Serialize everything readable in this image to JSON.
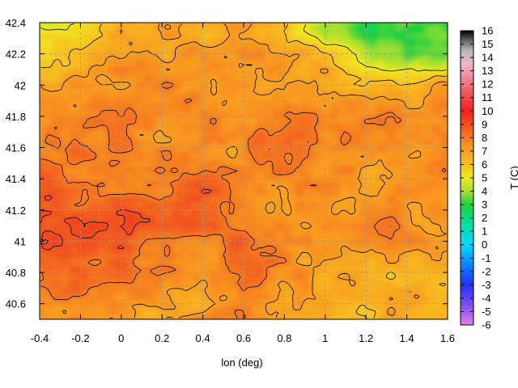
{
  "chart_data": {
    "type": "heatmap",
    "title": "",
    "xlabel": "lon (deg)",
    "ylabel": "",
    "colorbar_label": "T (C)",
    "xlim": [
      -0.4,
      1.6
    ],
    "ylim": [
      40.5,
      42.4
    ],
    "clim": [
      -6,
      16
    ],
    "x_ticks": [
      "-0.4",
      "-0.2",
      "0",
      "0.2",
      "0.4",
      "0.6",
      "0.8",
      "1",
      "1.2",
      "1.4",
      "1.6"
    ],
    "x_tick_values": [
      -0.4,
      -0.2,
      0,
      0.2,
      0.4,
      0.6,
      0.8,
      1,
      1.2,
      1.4,
      1.6
    ],
    "y_ticks": [
      "40.6",
      "40.8",
      "41",
      "41.2",
      "41.4",
      "41.6",
      "41.8",
      "42",
      "42.2",
      "42.4"
    ],
    "y_tick_values": [
      40.6,
      40.8,
      41,
      41.2,
      41.4,
      41.6,
      41.8,
      42,
      42.2,
      42.4
    ],
    "cb_ticks": [
      "-6",
      "-5",
      "-4",
      "-3",
      "-2",
      "-1",
      "0",
      "1",
      "2",
      "3",
      "4",
      "5",
      "6",
      "7",
      "8",
      "9",
      "10",
      "11",
      "12",
      "13",
      "14",
      "15",
      "16"
    ],
    "cb_tick_values": [
      -6,
      -5,
      -4,
      -3,
      -2,
      -1,
      0,
      1,
      2,
      3,
      4,
      5,
      6,
      7,
      8,
      9,
      10,
      11,
      12,
      13,
      14,
      15,
      16
    ],
    "grid": true,
    "colormap": [
      {
        "v": -6,
        "c": "#e07ef0"
      },
      {
        "v": -4.5,
        "c": "#8050f0"
      },
      {
        "v": -3,
        "c": "#2030ff"
      },
      {
        "v": -1.5,
        "c": "#1080ff"
      },
      {
        "v": 0,
        "c": "#00d8ff"
      },
      {
        "v": 1.5,
        "c": "#00e0a0"
      },
      {
        "v": 3,
        "c": "#20d040"
      },
      {
        "v": 4,
        "c": "#a8e030"
      },
      {
        "v": 5,
        "c": "#f0e820"
      },
      {
        "v": 6,
        "c": "#f8c020"
      },
      {
        "v": 7.5,
        "c": "#f89020"
      },
      {
        "v": 9,
        "c": "#f05020"
      },
      {
        "v": 10,
        "c": "#f02020"
      },
      {
        "v": 11,
        "c": "#f04848"
      },
      {
        "v": 12.5,
        "c": "#f08898"
      },
      {
        "v": 13.5,
        "c": "#f0b8c8"
      },
      {
        "v": 14.5,
        "c": "#b8b8b8"
      },
      {
        "v": 15.3,
        "c": "#606060"
      },
      {
        "v": 16,
        "c": "#000000"
      }
    ],
    "field": {
      "lon": [
        -0.4,
        -0.2,
        0,
        0.2,
        0.4,
        0.6,
        0.8,
        1.0,
        1.2,
        1.4,
        1.6
      ],
      "lat": [
        42.4,
        42.2,
        42.0,
        41.8,
        41.6,
        41.4,
        41.2,
        41.0,
        40.8,
        40.6,
        40.5
      ],
      "T": [
        [
          4.5,
          5.5,
          6.5,
          6.5,
          6.5,
          7.0,
          6.0,
          4.0,
          3.0,
          3.5,
          3.0
        ],
        [
          6.0,
          6.5,
          7.0,
          7.0,
          7.0,
          7.5,
          7.0,
          6.0,
          4.5,
          3.0,
          3.5
        ],
        [
          7.0,
          7.5,
          7.5,
          7.5,
          7.5,
          7.5,
          6.5,
          7.0,
          6.5,
          6.5,
          7.0
        ],
        [
          7.5,
          7.5,
          7.5,
          7.5,
          7.5,
          7.5,
          8.0,
          8.0,
          7.5,
          7.5,
          7.5
        ],
        [
          8.0,
          8.0,
          8.0,
          7.5,
          7.5,
          7.5,
          8.0,
          8.0,
          8.0,
          7.5,
          7.5
        ],
        [
          8.5,
          8.0,
          8.0,
          8.0,
          8.5,
          7.5,
          7.5,
          7.5,
          7.0,
          7.5,
          7.5
        ],
        [
          9.0,
          8.5,
          8.5,
          8.5,
          8.5,
          7.5,
          7.0,
          7.0,
          7.5,
          7.5,
          7.5
        ],
        [
          8.5,
          9.0,
          8.5,
          8.0,
          8.0,
          8.5,
          7.5,
          7.5,
          7.5,
          7.5,
          7.5
        ],
        [
          8.0,
          8.5,
          8.0,
          7.5,
          7.0,
          8.5,
          7.5,
          7.0,
          6.5,
          6.5,
          6.5
        ],
        [
          7.5,
          7.5,
          7.5,
          7.0,
          6.0,
          8.0,
          7.0,
          6.5,
          6.5,
          6.5,
          6.5
        ],
        [
          7.5,
          7.5,
          7.0,
          6.5,
          7.5,
          8.0,
          7.0,
          6.5,
          6.5,
          6.5,
          6.5
        ]
      ]
    }
  }
}
